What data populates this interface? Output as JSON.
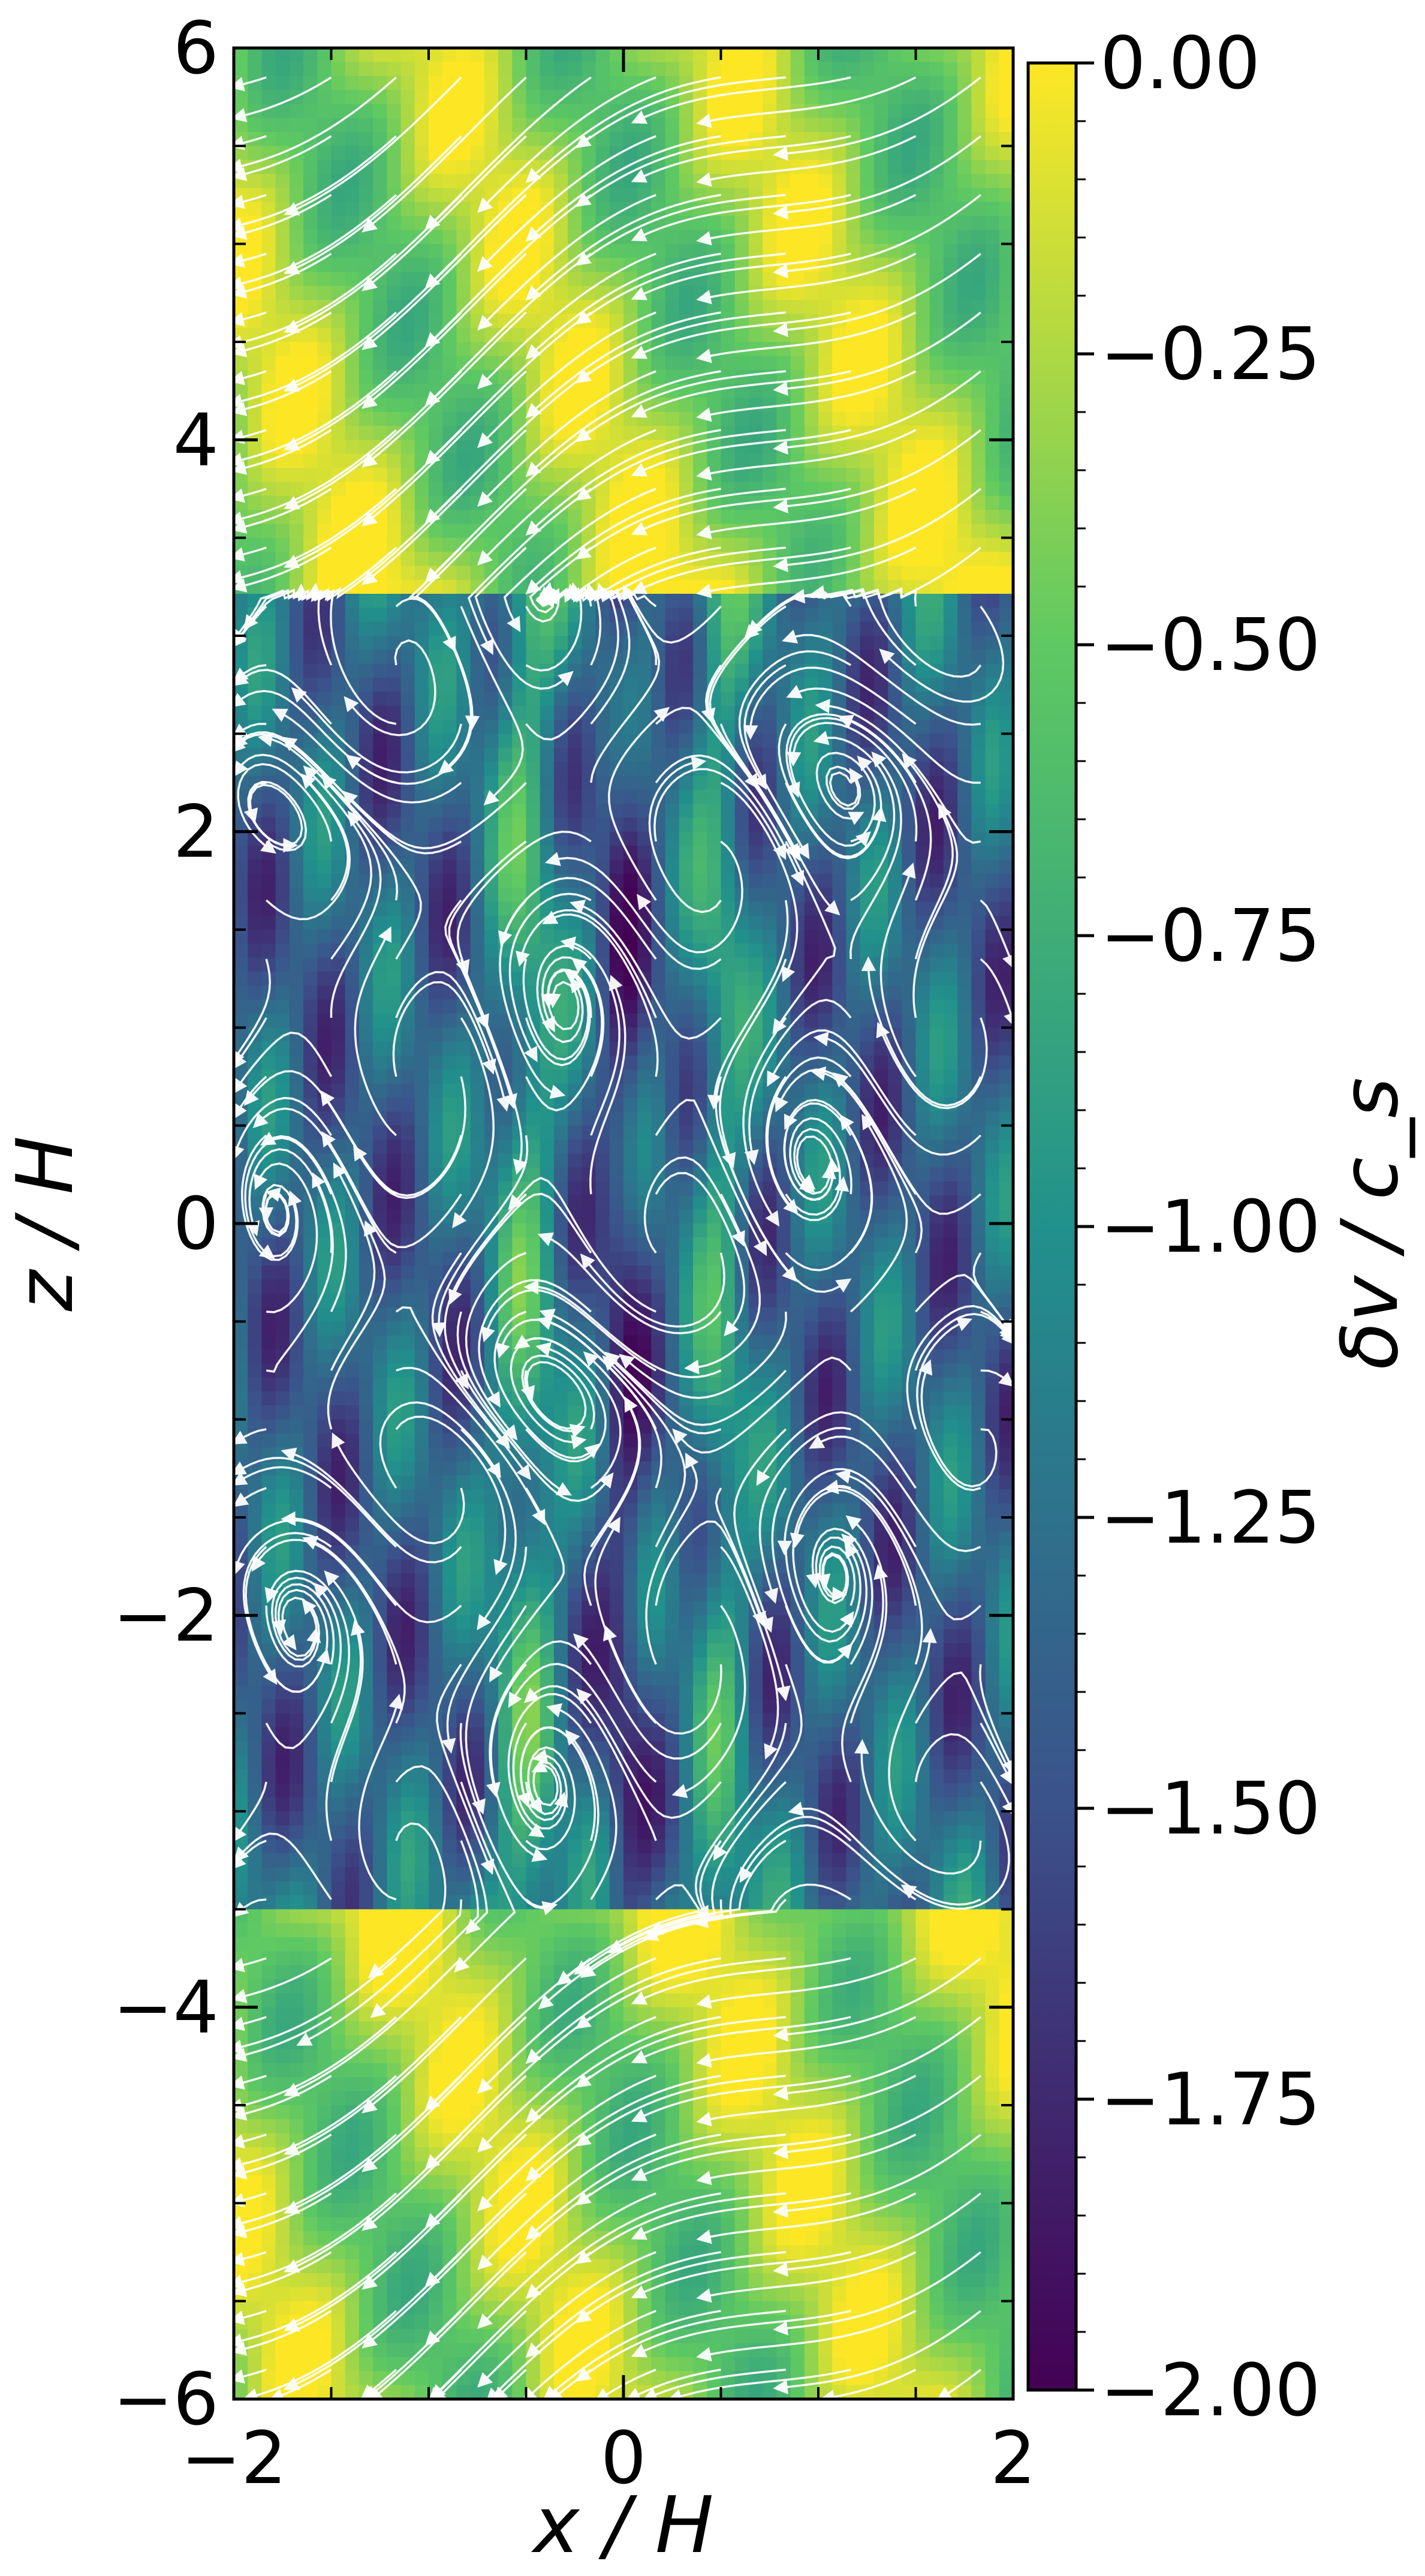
{
  "chart_data": {
    "type": "heatmap",
    "plot_overlay": "streamlines",
    "xlabel": "x / H",
    "ylabel": "z / H",
    "colorbar_label": "δv / c_s",
    "xlim": [
      -2,
      2
    ],
    "ylim": [
      -6,
      6
    ],
    "x_ticks": [
      -2,
      0,
      2
    ],
    "x_tick_labels": [
      "−2",
      "0",
      "2"
    ],
    "y_ticks": [
      -6,
      -4,
      -2,
      0,
      2,
      4,
      6
    ],
    "y_tick_labels": [
      "−6",
      "−4",
      "−2",
      "0",
      "2",
      "4",
      "6"
    ],
    "colorbar": {
      "colormap": "viridis",
      "range": [
        -2.0,
        0.0
      ],
      "ticks": [
        0.0,
        -0.25,
        -0.5,
        -0.75,
        -1.0,
        -1.25,
        -1.5,
        -1.75,
        -2.0
      ],
      "tick_labels": [
        "0.00",
        "−0.25",
        "−0.50",
        "−0.75",
        "−1.00",
        "−1.25",
        "−1.50",
        "−1.75",
        "−2.00"
      ]
    },
    "colors": {
      "colormap_stops": [
        "#440154",
        "#3b528b",
        "#21918c",
        "#5ec962",
        "#fde725"
      ],
      "streamline": "#ffffff"
    },
    "field_regions": [
      {
        "z_range": [
          3.2,
          6.0
        ],
        "value_range": [
          -0.7,
          0.0
        ],
        "note": "upper band, diagonal yellow-green streaks"
      },
      {
        "z_range": [
          -3.5,
          3.2
        ],
        "value_range": [
          -2.0,
          -0.6
        ],
        "note": "central turbulent region, dark blue/purple with green vertical stripes near x≈-0.5 and x≈0.5"
      },
      {
        "z_range": [
          -6.0,
          -3.5
        ],
        "value_range": [
          -0.7,
          0.0
        ],
        "note": "lower band, diagonal yellow streaks"
      }
    ]
  }
}
